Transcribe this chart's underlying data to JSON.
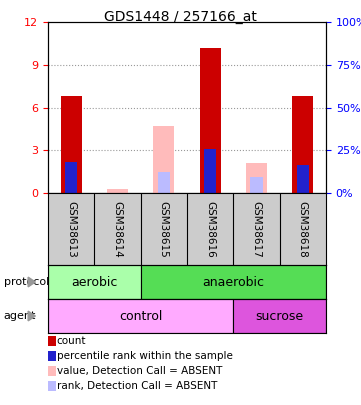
{
  "title": "GDS1448 / 257166_at",
  "samples": [
    "GSM38613",
    "GSM38614",
    "GSM38615",
    "GSM38616",
    "GSM38617",
    "GSM38618"
  ],
  "red_values": [
    6.8,
    0,
    0,
    10.2,
    0,
    6.8
  ],
  "blue_values": [
    2.2,
    0,
    0,
    3.1,
    0,
    2.0
  ],
  "pink_values": [
    0,
    0.3,
    4.7,
    0,
    2.1,
    0
  ],
  "lightblue_values": [
    0,
    0,
    1.5,
    0,
    1.1,
    0
  ],
  "ylim": [
    0,
    12
  ],
  "yticks": [
    0,
    3,
    6,
    9,
    12
  ],
  "yticks_right": [
    "0%",
    "25%",
    "50%",
    "75%",
    "100%"
  ],
  "protocol_spans": [
    [
      0,
      2,
      "aerobic"
    ],
    [
      2,
      6,
      "anaerobic"
    ]
  ],
  "agent_spans": [
    [
      0,
      4,
      "control"
    ],
    [
      4,
      6,
      "sucrose"
    ]
  ],
  "protocol_color_aerobic": "#aaffaa",
  "protocol_color_anaerobic": "#55dd55",
  "agent_color_control": "#ffaaff",
  "agent_color_sucrose": "#dd55dd",
  "bar_width": 0.45,
  "red_color": "#cc0000",
  "blue_color": "#2222cc",
  "pink_color": "#ffbbbb",
  "lightblue_color": "#bbbbff",
  "bg_color": "#cccccc",
  "grid_color": "#999999",
  "legend_items": [
    {
      "color": "#cc0000",
      "label": "count"
    },
    {
      "color": "#2222cc",
      "label": "percentile rank within the sample"
    },
    {
      "color": "#ffbbbb",
      "label": "value, Detection Call = ABSENT"
    },
    {
      "color": "#bbbbff",
      "label": "rank, Detection Call = ABSENT"
    }
  ]
}
